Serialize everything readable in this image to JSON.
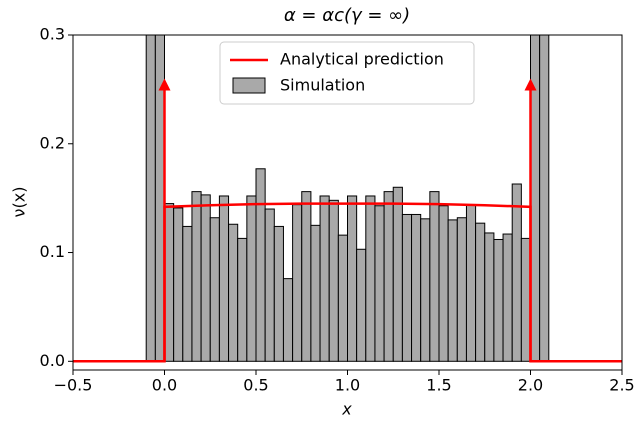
{
  "chart_data": {
    "type": "histogram",
    "title": "α = αc(γ = ∞)",
    "xlabel": "x",
    "ylabel": "ν(x)",
    "xlim": [
      -0.5,
      2.5
    ],
    "ylim": [
      -0.008,
      0.3
    ],
    "xticks": [
      {
        "value": -0.5,
        "label": "−0.5"
      },
      {
        "value": 0,
        "label": "0.0"
      },
      {
        "value": 0.5,
        "label": "0.5"
      },
      {
        "value": 1,
        "label": "1.0"
      },
      {
        "value": 1.5,
        "label": "1.5"
      },
      {
        "value": 2,
        "label": "2.0"
      },
      {
        "value": 2.5,
        "label": "2.5"
      }
    ],
    "yticks": [
      {
        "value": 0,
        "label": "0.0"
      },
      {
        "value": 0.1,
        "label": "0.1"
      },
      {
        "value": 0.2,
        "label": "0.2"
      },
      {
        "value": 0.3,
        "label": "0.3"
      }
    ],
    "legend": "upper center",
    "histogram": {
      "name": "Simulation",
      "color": "#a9a9a9",
      "bins": [
        -0.1,
        -0.05,
        0,
        0.05,
        0.1,
        0.15,
        0.2,
        0.25,
        0.3,
        0.35,
        0.4,
        0.45,
        0.5,
        0.55,
        0.6,
        0.65,
        0.7,
        0.75,
        0.8,
        0.85,
        0.9,
        0.95,
        1,
        1.05,
        1.1,
        1.15,
        1.2,
        1.25,
        1.3,
        1.35,
        1.4,
        1.45,
        1.5,
        1.55,
        1.6,
        1.65,
        1.7,
        1.75,
        1.8,
        1.85,
        1.9,
        1.95,
        2,
        2.05,
        2.1
      ],
      "counts": [
        0.4,
        0.4,
        0.145,
        0.141,
        0.124,
        0.156,
        0.153,
        0.132,
        0.152,
        0.126,
        0.113,
        0.152,
        0.177,
        0.14,
        0.124,
        0.076,
        0.144,
        0.156,
        0.125,
        0.152,
        0.148,
        0.116,
        0.152,
        0.103,
        0.152,
        0.143,
        0.156,
        0.16,
        0.135,
        0.135,
        0.131,
        0.156,
        0.143,
        0.13,
        0.132,
        0.144,
        0.127,
        0.118,
        0.112,
        0.117,
        0.163,
        0.113,
        0.4,
        0.4
      ]
    },
    "series": [
      {
        "name": "Analytical prediction",
        "color": "#ff0000",
        "x": [
          -0.5,
          0,
          0,
          0.25,
          0.5,
          0.75,
          1,
          1.25,
          1.5,
          1.75,
          2,
          2,
          2.5
        ],
        "values": [
          0,
          0,
          0.142,
          0.1435,
          0.1445,
          0.145,
          0.145,
          0.145,
          0.1445,
          0.1435,
          0.142,
          0,
          0
        ]
      }
    ],
    "arrows": [
      {
        "x": 0,
        "y": 0.26
      },
      {
        "x": 2,
        "y": 0.26
      }
    ]
  }
}
